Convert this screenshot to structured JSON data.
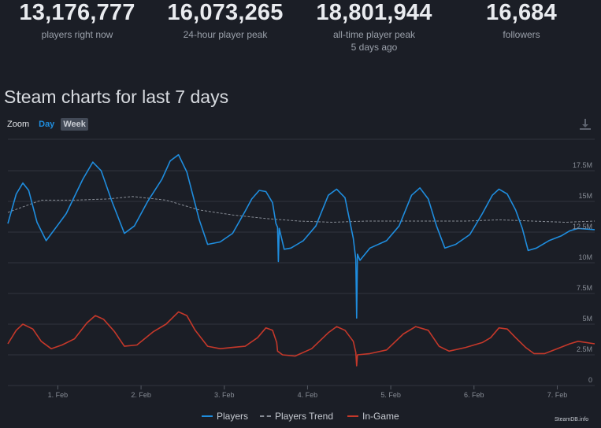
{
  "stats": [
    {
      "value": "13,176,777",
      "label": "players right now",
      "sub": ""
    },
    {
      "value": "16,073,265",
      "label": "24-hour player peak",
      "sub": ""
    },
    {
      "value": "18,801,944",
      "label": "all-time player peak",
      "sub": "5 days ago"
    },
    {
      "value": "16,684",
      "label": "followers",
      "sub": ""
    }
  ],
  "title": "Steam charts for last 7 days",
  "zoom": {
    "label": "Zoom",
    "day": "Day",
    "week": "Week"
  },
  "download_icon": "download-icon",
  "legend": [
    "Players",
    "Players Trend",
    "In-Game"
  ],
  "credit": "SteamDB.info",
  "colors": {
    "background": "#1b1e26",
    "players": "#1f8dde",
    "trend": "#888d96",
    "ingame": "#c5382a",
    "grid": "#30343d"
  },
  "chart_data": {
    "type": "line",
    "x_unit": "days",
    "x_range": [
      0.4,
      7.45
    ],
    "x_ticks": [
      {
        "x": 1,
        "label": "1. Feb"
      },
      {
        "x": 2,
        "label": "2. Feb"
      },
      {
        "x": 3,
        "label": "3. Feb"
      },
      {
        "x": 4,
        "label": "4. Feb"
      },
      {
        "x": 5,
        "label": "5. Feb"
      },
      {
        "x": 6,
        "label": "6. Feb"
      },
      {
        "x": 7,
        "label": "7. Feb"
      }
    ],
    "y_range": [
      0,
      20000000
    ],
    "y_ticks": [
      {
        "y": 0,
        "label": "0"
      },
      {
        "y": 2500000,
        "label": "2.5M"
      },
      {
        "y": 5000000,
        "label": "5M"
      },
      {
        "y": 7500000,
        "label": "7.5M"
      },
      {
        "y": 10000000,
        "label": "10M"
      },
      {
        "y": 12500000,
        "label": "12.5M"
      },
      {
        "y": 15000000,
        "label": "15M"
      },
      {
        "y": 17500000,
        "label": "17.5M"
      }
    ],
    "series": [
      {
        "name": "Players",
        "style": "solid",
        "points": [
          [
            0.4,
            13.2
          ],
          [
            0.5,
            15.6
          ],
          [
            0.58,
            16.5
          ],
          [
            0.65,
            15.9
          ],
          [
            0.75,
            13.3
          ],
          [
            0.86,
            11.8
          ],
          [
            0.97,
            12.8
          ],
          [
            1.1,
            14.0
          ],
          [
            1.3,
            16.8
          ],
          [
            1.42,
            18.2
          ],
          [
            1.52,
            17.5
          ],
          [
            1.65,
            15.0
          ],
          [
            1.8,
            12.4
          ],
          [
            1.92,
            13.0
          ],
          [
            2.08,
            15.0
          ],
          [
            2.25,
            16.8
          ],
          [
            2.35,
            18.3
          ],
          [
            2.45,
            18.8
          ],
          [
            2.55,
            17.4
          ],
          [
            2.7,
            13.5
          ],
          [
            2.8,
            11.5
          ],
          [
            2.95,
            11.7
          ],
          [
            3.1,
            12.4
          ],
          [
            3.25,
            14.2
          ],
          [
            3.33,
            15.2
          ],
          [
            3.42,
            15.9
          ],
          [
            3.5,
            15.8
          ],
          [
            3.58,
            14.9
          ],
          [
            3.62,
            13.2
          ],
          [
            3.64,
            12.9
          ],
          [
            3.65,
            10.1
          ],
          [
            3.66,
            12.8
          ],
          [
            3.72,
            11.1
          ],
          [
            3.8,
            11.2
          ],
          [
            3.95,
            11.8
          ],
          [
            4.1,
            13.0
          ],
          [
            4.25,
            15.5
          ],
          [
            4.35,
            16.0
          ],
          [
            4.45,
            15.3
          ],
          [
            4.55,
            12.0
          ],
          [
            4.58,
            10.3
          ],
          [
            4.59,
            5.5
          ],
          [
            4.6,
            10.7
          ],
          [
            4.63,
            10.2
          ],
          [
            4.75,
            11.2
          ],
          [
            4.95,
            11.8
          ],
          [
            5.1,
            13.0
          ],
          [
            5.25,
            15.5
          ],
          [
            5.35,
            16.1
          ],
          [
            5.45,
            15.2
          ],
          [
            5.55,
            13.0
          ],
          [
            5.65,
            11.2
          ],
          [
            5.78,
            11.5
          ],
          [
            5.95,
            12.3
          ],
          [
            6.1,
            14.0
          ],
          [
            6.22,
            15.5
          ],
          [
            6.3,
            16.0
          ],
          [
            6.4,
            15.6
          ],
          [
            6.5,
            14.3
          ],
          [
            6.58,
            12.8
          ],
          [
            6.65,
            11.0
          ],
          [
            6.75,
            11.2
          ],
          [
            6.9,
            11.8
          ],
          [
            7.05,
            12.2
          ],
          [
            7.15,
            12.6
          ],
          [
            7.25,
            12.8
          ],
          [
            7.45,
            12.7
          ]
        ]
      },
      {
        "name": "Players Trend",
        "style": "dashed",
        "points": [
          [
            0.4,
            14.1
          ],
          [
            0.8,
            15.1
          ],
          [
            1.2,
            15.1
          ],
          [
            1.6,
            15.2
          ],
          [
            1.9,
            15.4
          ],
          [
            2.3,
            15.1
          ],
          [
            2.7,
            14.3
          ],
          [
            3.1,
            13.9
          ],
          [
            3.5,
            13.6
          ],
          [
            3.9,
            13.4
          ],
          [
            4.3,
            13.3
          ],
          [
            4.7,
            13.4
          ],
          [
            5.1,
            13.4
          ],
          [
            5.5,
            13.4
          ],
          [
            5.9,
            13.4
          ],
          [
            6.3,
            13.5
          ],
          [
            6.7,
            13.4
          ],
          [
            7.1,
            13.3
          ],
          [
            7.45,
            13.4
          ]
        ]
      },
      {
        "name": "In-Game",
        "style": "solid",
        "points": [
          [
            0.4,
            3.4
          ],
          [
            0.5,
            4.5
          ],
          [
            0.58,
            5.0
          ],
          [
            0.7,
            4.6
          ],
          [
            0.8,
            3.6
          ],
          [
            0.92,
            3.0
          ],
          [
            1.05,
            3.3
          ],
          [
            1.2,
            3.8
          ],
          [
            1.35,
            5.1
          ],
          [
            1.45,
            5.7
          ],
          [
            1.55,
            5.4
          ],
          [
            1.68,
            4.4
          ],
          [
            1.8,
            3.2
          ],
          [
            1.95,
            3.3
          ],
          [
            2.15,
            4.4
          ],
          [
            2.3,
            5.0
          ],
          [
            2.45,
            6.0
          ],
          [
            2.55,
            5.7
          ],
          [
            2.65,
            4.5
          ],
          [
            2.8,
            3.2
          ],
          [
            2.95,
            3.0
          ],
          [
            3.1,
            3.1
          ],
          [
            3.25,
            3.2
          ],
          [
            3.4,
            3.9
          ],
          [
            3.5,
            4.7
          ],
          [
            3.58,
            4.5
          ],
          [
            3.63,
            3.5
          ],
          [
            3.64,
            2.8
          ],
          [
            3.7,
            2.5
          ],
          [
            3.85,
            2.4
          ],
          [
            4.05,
            3.0
          ],
          [
            4.25,
            4.3
          ],
          [
            4.35,
            4.8
          ],
          [
            4.45,
            4.5
          ],
          [
            4.55,
            3.6
          ],
          [
            4.58,
            2.7
          ],
          [
            4.59,
            1.6
          ],
          [
            4.6,
            2.5
          ],
          [
            4.75,
            2.6
          ],
          [
            4.95,
            2.9
          ],
          [
            5.15,
            4.2
          ],
          [
            5.3,
            4.8
          ],
          [
            5.45,
            4.5
          ],
          [
            5.58,
            3.2
          ],
          [
            5.7,
            2.8
          ],
          [
            5.9,
            3.1
          ],
          [
            6.1,
            3.5
          ],
          [
            6.2,
            3.9
          ],
          [
            6.3,
            4.7
          ],
          [
            6.4,
            4.6
          ],
          [
            6.5,
            3.9
          ],
          [
            6.62,
            3.1
          ],
          [
            6.72,
            2.6
          ],
          [
            6.85,
            2.6
          ],
          [
            7.0,
            3.0
          ],
          [
            7.15,
            3.4
          ],
          [
            7.25,
            3.6
          ],
          [
            7.45,
            3.4
          ]
        ]
      }
    ]
  }
}
